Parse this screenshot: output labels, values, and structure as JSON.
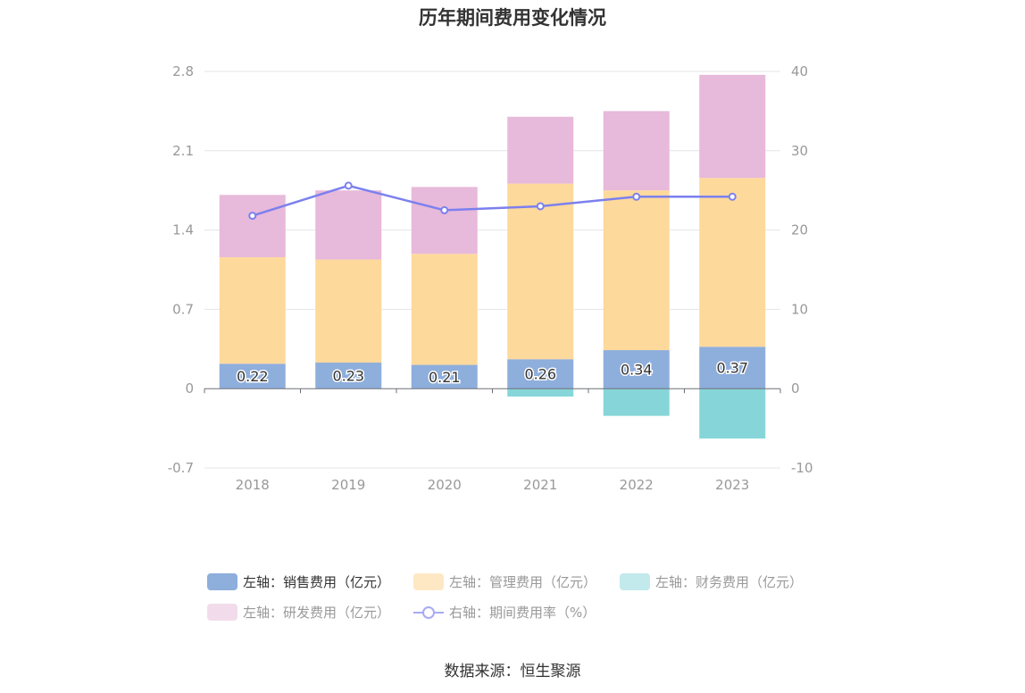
{
  "title": "历年期间费用变化情况",
  "source": "数据来源：恒生聚源",
  "chart_data": {
    "type": "bar",
    "stacked": true,
    "categories": [
      "2018",
      "2019",
      "2020",
      "2021",
      "2022",
      "2023"
    ],
    "left_axis": {
      "ylim": [
        -0.7,
        2.8
      ],
      "ticks": [
        "-0.7",
        "0",
        "0.7",
        "1.4",
        "2.1",
        "2.8"
      ]
    },
    "right_axis": {
      "ylim": [
        -10,
        40
      ],
      "ticks": [
        "-10",
        "0",
        "10",
        "20",
        "30",
        "40"
      ]
    },
    "series": [
      {
        "name": "左轴：销售费用（亿元）",
        "axis": "left",
        "type": "bar",
        "color": "#8eaedc",
        "values": [
          0.22,
          0.23,
          0.21,
          0.26,
          0.34,
          0.37
        ],
        "labels": [
          "0.22",
          "0.23",
          "0.21",
          "0.26",
          "0.34",
          "0.37"
        ]
      },
      {
        "name": "左轴：管理费用（亿元）",
        "axis": "left",
        "type": "bar",
        "color": "#fed99c",
        "values": [
          0.94,
          0.91,
          0.98,
          1.55,
          1.41,
          1.49
        ]
      },
      {
        "name": "左轴：财务费用（亿元）",
        "axis": "left",
        "type": "bar",
        "color": "#86d6d9",
        "values": [
          0.0,
          0.0,
          0.0,
          -0.07,
          -0.24,
          -0.44
        ]
      },
      {
        "name": "左轴：研发费用（亿元）",
        "axis": "left",
        "type": "bar",
        "color": "#e7b9da",
        "values": [
          0.55,
          0.61,
          0.59,
          0.59,
          0.7,
          0.91
        ]
      },
      {
        "name": "右轴：期间费用率（%）",
        "axis": "right",
        "type": "line",
        "color": "#7b80ee",
        "values": [
          21.8,
          25.6,
          22.5,
          23.0,
          24.2,
          24.2
        ]
      }
    ],
    "legend": {
      "position": "bottom",
      "swatch_colors": [
        "#8eaedc",
        "#fee8c4",
        "#c2e9eb",
        "#f2dcec",
        "#7b80ee"
      ]
    },
    "grid": true
  }
}
